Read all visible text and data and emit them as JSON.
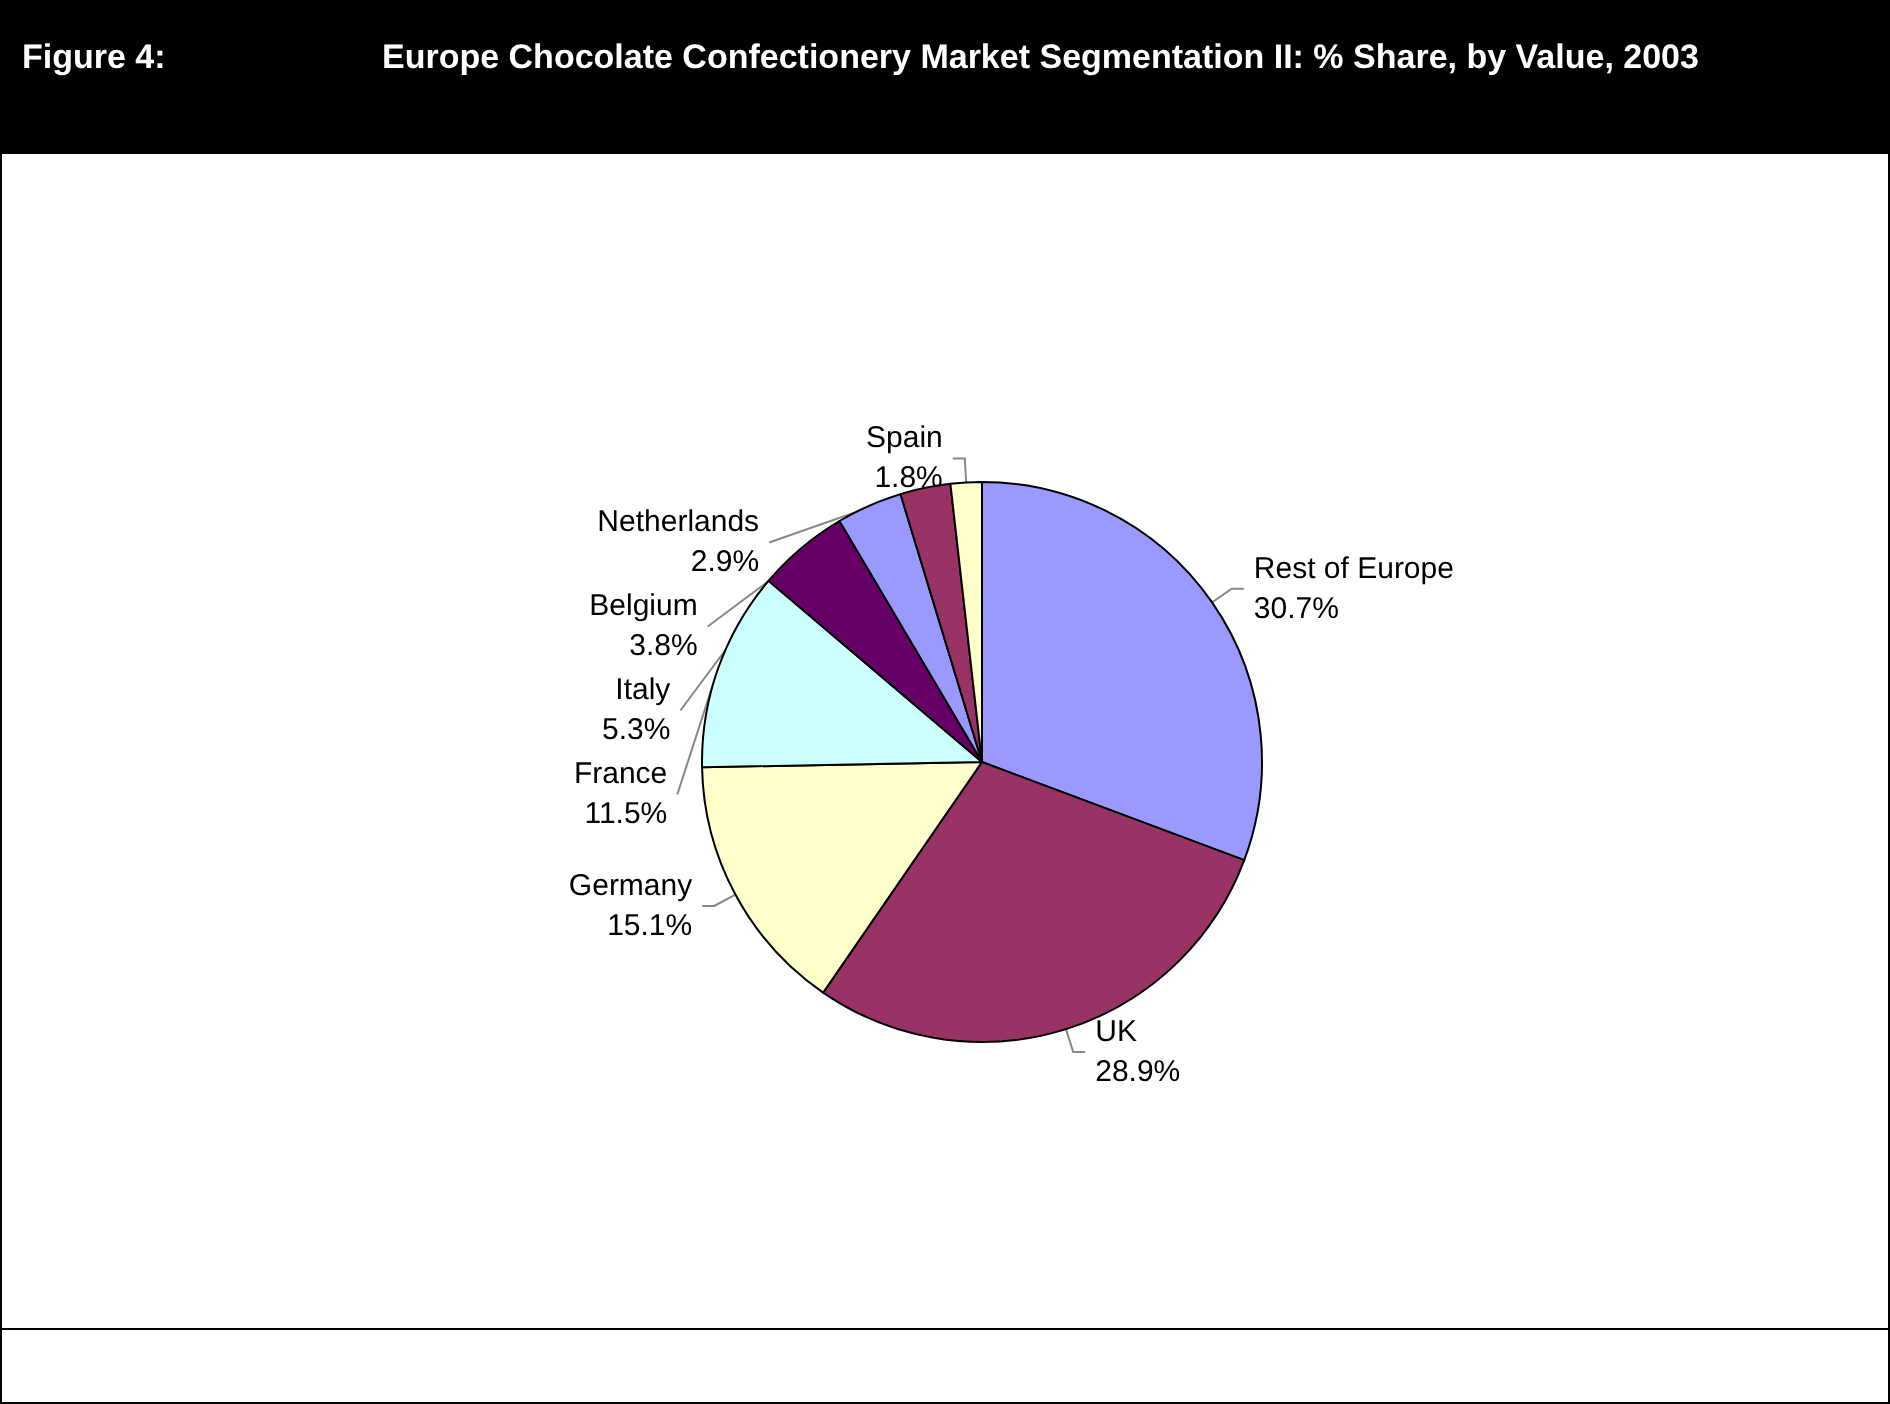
{
  "chart_data": {
    "type": "pie",
    "title": "Figure 4:",
    "subtitle": "Europe Chocolate Confectionery Market Segmentation II: % Share, by Value, 2003",
    "categories": [
      "Rest of Europe",
      "UK",
      "Germany",
      "France",
      "Italy",
      "Belgium",
      "Netherlands",
      "Spain"
    ],
    "values": [
      30.7,
      28.9,
      15.1,
      11.5,
      5.3,
      3.8,
      2.9,
      1.8
    ],
    "colors": [
      "#9999ff",
      "#993366",
      "#ffffcc",
      "#ccffff",
      "#660066",
      "#9999ff",
      "#993366",
      "#ffffcc"
    ],
    "value_labels": [
      "30.7%",
      "28.9%",
      "15.1%",
      "11.5%",
      "5.3%",
      "3.8%",
      "2.9%",
      "1.8%"
    ],
    "legend": false
  }
}
